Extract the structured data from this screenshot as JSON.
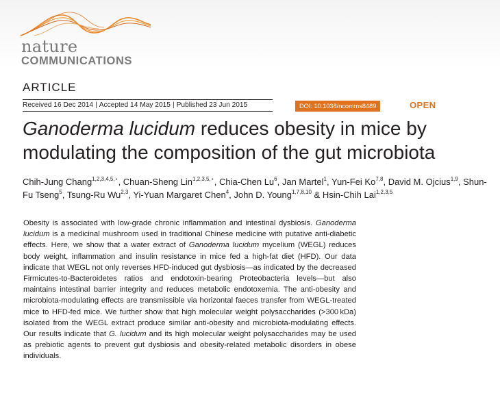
{
  "journal": {
    "logo_line1": "nature",
    "logo_line2": "COMMUNICATIONS",
    "accent_color": "#e2711d"
  },
  "article": {
    "type": "ARTICLE",
    "received": "Received 16 Dec 2014",
    "accepted": "Accepted 14 May 2015",
    "published": "Published 23 Jun 2015",
    "doi": "DOI: 10.1038/ncomms8489",
    "access": "OPEN",
    "title_italic": "Ganoderma lucidum",
    "title_rest": " reduces obesity in mice by modulating the composition of the gut microbiota"
  },
  "authors": [
    {
      "name": "Chih-Jung Chang",
      "aff": "1,2,3,4,5,⋆"
    },
    {
      "name": "Chuan-Sheng Lin",
      "aff": "1,2,3,5,⋆"
    },
    {
      "name": "Chia-Chen Lu",
      "aff": "6"
    },
    {
      "name": "Jan Martel",
      "aff": "1"
    },
    {
      "name": "Yun-Fei Ko",
      "aff": "7,8"
    },
    {
      "name": "David M. Ojcius",
      "aff": "1,9"
    },
    {
      "name": "Shun-Fu Tseng",
      "aff": "5"
    },
    {
      "name": "Tsung-Ru Wu",
      "aff": "2,3"
    },
    {
      "name": "Yi-Yuan Margaret Chen",
      "aff": "4"
    },
    {
      "name": "John D. Young",
      "aff": "1,7,8,10"
    },
    {
      "name": "Hsin-Chih Lai",
      "aff": "1,2,3,5"
    }
  ],
  "authors_conjunction": "&",
  "abstract": {
    "p1": "Obesity is associated with low-grade chronic inflammation and intestinal dysbiosis. ",
    "i1": "Ganoderma lucidum",
    "p2": " is a medicinal mushroom used in traditional Chinese medicine with putative anti-diabetic effects. Here, we show that a water extract of ",
    "i2": "Ganoderma lucidum",
    "p3": " mycelium (WEGL) reduces body weight, inflammation and insulin resistance in mice fed a high-fat diet (HFD). Our data indicate that WEGL not only reverses HFD-induced gut dysbiosis—as indicated by the decreased Firmicutes-to-Bacteroidetes ratios and endotoxin-bearing Proteobacteria levels—but also maintains intestinal barrier integrity and reduces metabolic endotoxemia. The anti-obesity and microbiota-modulating effects are transmissible via horizontal faeces transfer from WEGL-treated mice to HFD-fed mice. We further show that high molecular weight polysaccharides (>300 kDa) isolated from the WEGL extract produce similar anti-obesity and microbiota-modulating effects. Our results indicate that ",
    "i3": "G. lucidum",
    "p4": " and its high molecular weight polysaccharides may be used as prebiotic agents to prevent gut dysbiosis and obesity-related metabolic disorders in obese individuals."
  }
}
